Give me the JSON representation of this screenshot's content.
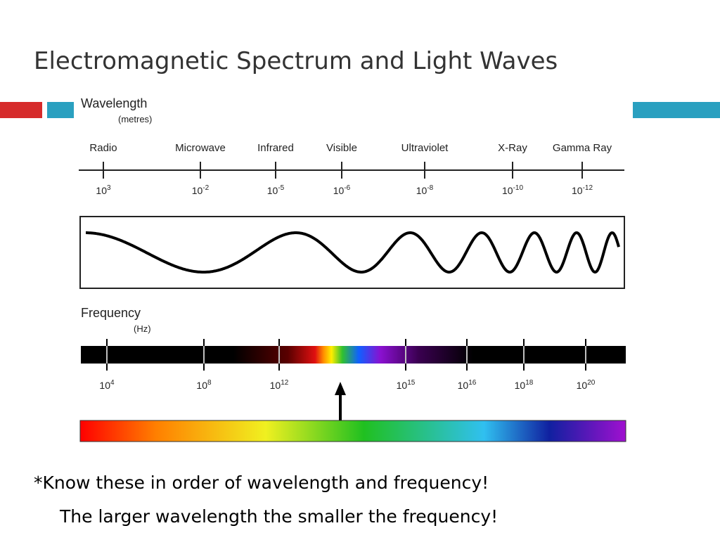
{
  "header": {
    "title": "Electromagnetic Spectrum and Light Waves"
  },
  "wavelength": {
    "label": "Wavelength",
    "unit": "(metres)",
    "ticks": [
      {
        "name": "Radio",
        "base": "10",
        "exp": "3"
      },
      {
        "name": "Microwave",
        "base": "10",
        "exp": "-2"
      },
      {
        "name": "Infrared",
        "base": "10",
        "exp": "-5"
      },
      {
        "name": "Visible",
        "base": "10",
        "exp": "-6"
      },
      {
        "name": "Ultraviolet",
        "base": "10",
        "exp": "-8"
      },
      {
        "name": "X-Ray",
        "base": "10",
        "exp": "-10"
      },
      {
        "name": "Gamma Ray",
        "base": "10",
        "exp": "-12"
      }
    ]
  },
  "frequency": {
    "label": "Frequency",
    "unit": "(Hz)",
    "ticks": [
      {
        "base": "10",
        "exp": "4"
      },
      {
        "base": "10",
        "exp": "8"
      },
      {
        "base": "10",
        "exp": "12"
      },
      {
        "base": "10",
        "exp": "15"
      },
      {
        "base": "10",
        "exp": "16"
      },
      {
        "base": "10",
        "exp": "18"
      },
      {
        "base": "10",
        "exp": "20"
      }
    ]
  },
  "notes": [
    "*Know these in order of wavelength and frequency!",
    "The larger wavelength the smaller the frequency!"
  ]
}
